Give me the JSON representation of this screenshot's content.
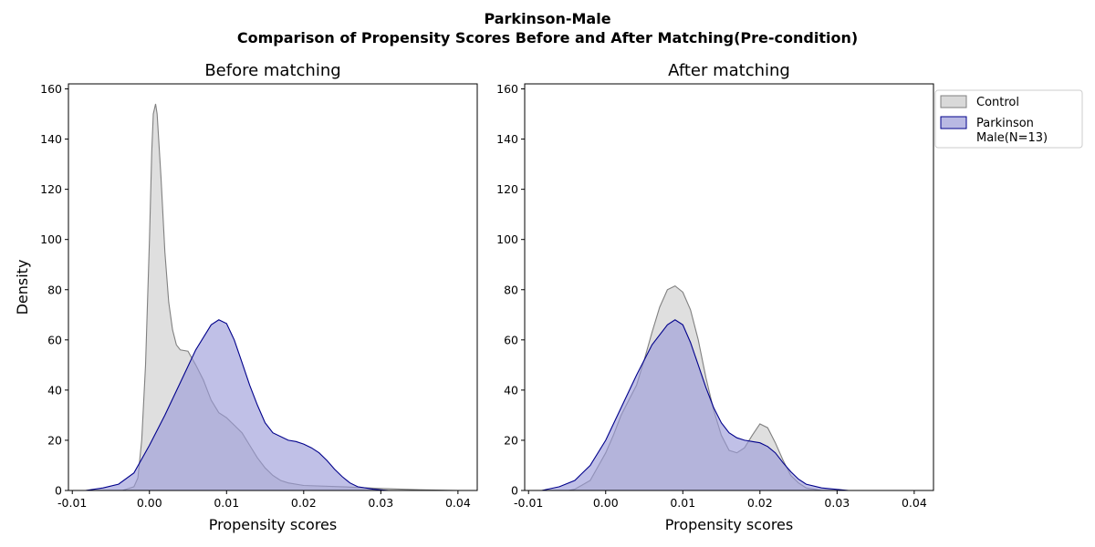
{
  "figure": {
    "suptitle_line1": "Parkinson-Male",
    "suptitle_line2": "Comparison of Propensity Scores Before and After Matching(Pre-condition)"
  },
  "legend": {
    "entries": [
      {
        "label_lines": [
          "Control"
        ],
        "fill": "#d9d9d9",
        "stroke": "#808080"
      },
      {
        "label_lines": [
          "Parkinson",
          "Male(N=13)"
        ],
        "fill": "#b9b9e3",
        "stroke": "#00008b"
      }
    ],
    "placement": "outside right, top"
  },
  "colors": {
    "control_fill": "#d3d3d3",
    "control_line": "#808080",
    "case_fill": "#9a9ad8",
    "case_line": "#00008b"
  },
  "chart_data": [
    {
      "type": "area",
      "title": "Before matching",
      "xlabel": "Propensity scores",
      "ylabel": "Density",
      "xlim": [
        -0.0105,
        0.0425
      ],
      "ylim": [
        0,
        162
      ],
      "xticks": [
        -0.01,
        0.0,
        0.01,
        0.02,
        0.03,
        0.04
      ],
      "xtick_labels": [
        "-0.01",
        "0.00",
        "0.01",
        "0.02",
        "0.03",
        "0.04"
      ],
      "yticks": [
        0,
        20,
        40,
        60,
        80,
        100,
        120,
        140,
        160
      ],
      "ytick_labels": [
        "0",
        "20",
        "40",
        "60",
        "80",
        "100",
        "120",
        "140",
        "160"
      ],
      "grid": false,
      "series": [
        {
          "name": "Control",
          "color_key": "control",
          "points": [
            [
              -0.0035,
              0
            ],
            [
              -0.002,
              1.5
            ],
            [
              -0.0015,
              5
            ],
            [
              -0.001,
              20
            ],
            [
              -0.0005,
              50
            ],
            [
              0.0,
              100
            ],
            [
              0.0003,
              135
            ],
            [
              0.0005,
              150
            ],
            [
              0.0008,
              154
            ],
            [
              0.001,
              150
            ],
            [
              0.0015,
              125
            ],
            [
              0.002,
              95
            ],
            [
              0.0025,
              75
            ],
            [
              0.003,
              64
            ],
            [
              0.0035,
              58
            ],
            [
              0.004,
              56
            ],
            [
              0.005,
              55.5
            ],
            [
              0.006,
              50
            ],
            [
              0.007,
              44
            ],
            [
              0.008,
              36
            ],
            [
              0.009,
              31
            ],
            [
              0.01,
              29
            ],
            [
              0.011,
              26
            ],
            [
              0.012,
              23
            ],
            [
              0.013,
              18
            ],
            [
              0.014,
              13
            ],
            [
              0.015,
              9
            ],
            [
              0.016,
              6
            ],
            [
              0.017,
              4
            ],
            [
              0.018,
              3
            ],
            [
              0.02,
              2
            ],
            [
              0.025,
              1.5
            ],
            [
              0.03,
              0.8
            ],
            [
              0.035,
              0.3
            ],
            [
              0.04,
              0
            ]
          ]
        },
        {
          "name": "Parkinson\nMale(N=13)",
          "color_key": "case",
          "points": [
            [
              -0.0083,
              0
            ],
            [
              -0.006,
              1
            ],
            [
              -0.004,
              2.5
            ],
            [
              -0.002,
              7
            ],
            [
              0.0,
              18
            ],
            [
              0.002,
              30
            ],
            [
              0.004,
              43
            ],
            [
              0.006,
              56
            ],
            [
              0.008,
              66
            ],
            [
              0.009,
              68
            ],
            [
              0.01,
              66.5
            ],
            [
              0.011,
              60
            ],
            [
              0.012,
              51
            ],
            [
              0.013,
              42
            ],
            [
              0.014,
              34
            ],
            [
              0.015,
              27
            ],
            [
              0.016,
              23
            ],
            [
              0.018,
              20
            ],
            [
              0.019,
              19.5
            ],
            [
              0.02,
              18.5
            ],
            [
              0.021,
              17
            ],
            [
              0.022,
              15
            ],
            [
              0.023,
              12
            ],
            [
              0.024,
              8.5
            ],
            [
              0.025,
              5.5
            ],
            [
              0.026,
              3
            ],
            [
              0.027,
              1.5
            ],
            [
              0.029,
              0.5
            ],
            [
              0.031,
              0
            ]
          ]
        }
      ]
    },
    {
      "type": "area",
      "title": "After matching",
      "xlabel": "Propensity scores",
      "ylabel": "",
      "xlim": [
        -0.0105,
        0.0425
      ],
      "ylim": [
        0,
        162
      ],
      "xticks": [
        -0.01,
        0.0,
        0.01,
        0.02,
        0.03,
        0.04
      ],
      "xtick_labels": [
        "-0.01",
        "0.00",
        "0.01",
        "0.02",
        "0.03",
        "0.04"
      ],
      "yticks": [
        0,
        20,
        40,
        60,
        80,
        100,
        120,
        140,
        160
      ],
      "ytick_labels": [
        "0",
        "20",
        "40",
        "60",
        "80",
        "100",
        "120",
        "140",
        "160"
      ],
      "grid": false,
      "series": [
        {
          "name": "Control",
          "color_key": "control",
          "points": [
            [
              -0.0048,
              0
            ],
            [
              -0.004,
              0.5
            ],
            [
              -0.002,
              4
            ],
            [
              0.0,
              15
            ],
            [
              0.001,
              22
            ],
            [
              0.002,
              30
            ],
            [
              0.003,
              36
            ],
            [
              0.004,
              42
            ],
            [
              0.005,
              52
            ],
            [
              0.006,
              63
            ],
            [
              0.007,
              73
            ],
            [
              0.008,
              80
            ],
            [
              0.009,
              81.5
            ],
            [
              0.01,
              79
            ],
            [
              0.011,
              72
            ],
            [
              0.012,
              60
            ],
            [
              0.013,
              45
            ],
            [
              0.014,
              32
            ],
            [
              0.015,
              22
            ],
            [
              0.016,
              16
            ],
            [
              0.017,
              15
            ],
            [
              0.018,
              17
            ],
            [
              0.019,
              22
            ],
            [
              0.02,
              26.5
            ],
            [
              0.021,
              25
            ],
            [
              0.022,
              19
            ],
            [
              0.023,
              12
            ],
            [
              0.024,
              6
            ],
            [
              0.025,
              3
            ],
            [
              0.026,
              1
            ],
            [
              0.028,
              0
            ]
          ]
        },
        {
          "name": "Parkinson\nMale(N=13)",
          "color_key": "case",
          "points": [
            [
              -0.0083,
              0
            ],
            [
              -0.006,
              1.5
            ],
            [
              -0.004,
              4
            ],
            [
              -0.002,
              10
            ],
            [
              0.0,
              20
            ],
            [
              0.002,
              33
            ],
            [
              0.004,
              46
            ],
            [
              0.006,
              58
            ],
            [
              0.008,
              66
            ],
            [
              0.009,
              68
            ],
            [
              0.01,
              66
            ],
            [
              0.011,
              59
            ],
            [
              0.012,
              50
            ],
            [
              0.013,
              41
            ],
            [
              0.014,
              33
            ],
            [
              0.015,
              27
            ],
            [
              0.016,
              23
            ],
            [
              0.017,
              21
            ],
            [
              0.018,
              20
            ],
            [
              0.019,
              19.5
            ],
            [
              0.02,
              19
            ],
            [
              0.021,
              17.5
            ],
            [
              0.022,
              15
            ],
            [
              0.023,
              11
            ],
            [
              0.024,
              7.5
            ],
            [
              0.025,
              4.5
            ],
            [
              0.026,
              2.5
            ],
            [
              0.028,
              1
            ],
            [
              0.0315,
              0
            ]
          ]
        }
      ]
    }
  ]
}
